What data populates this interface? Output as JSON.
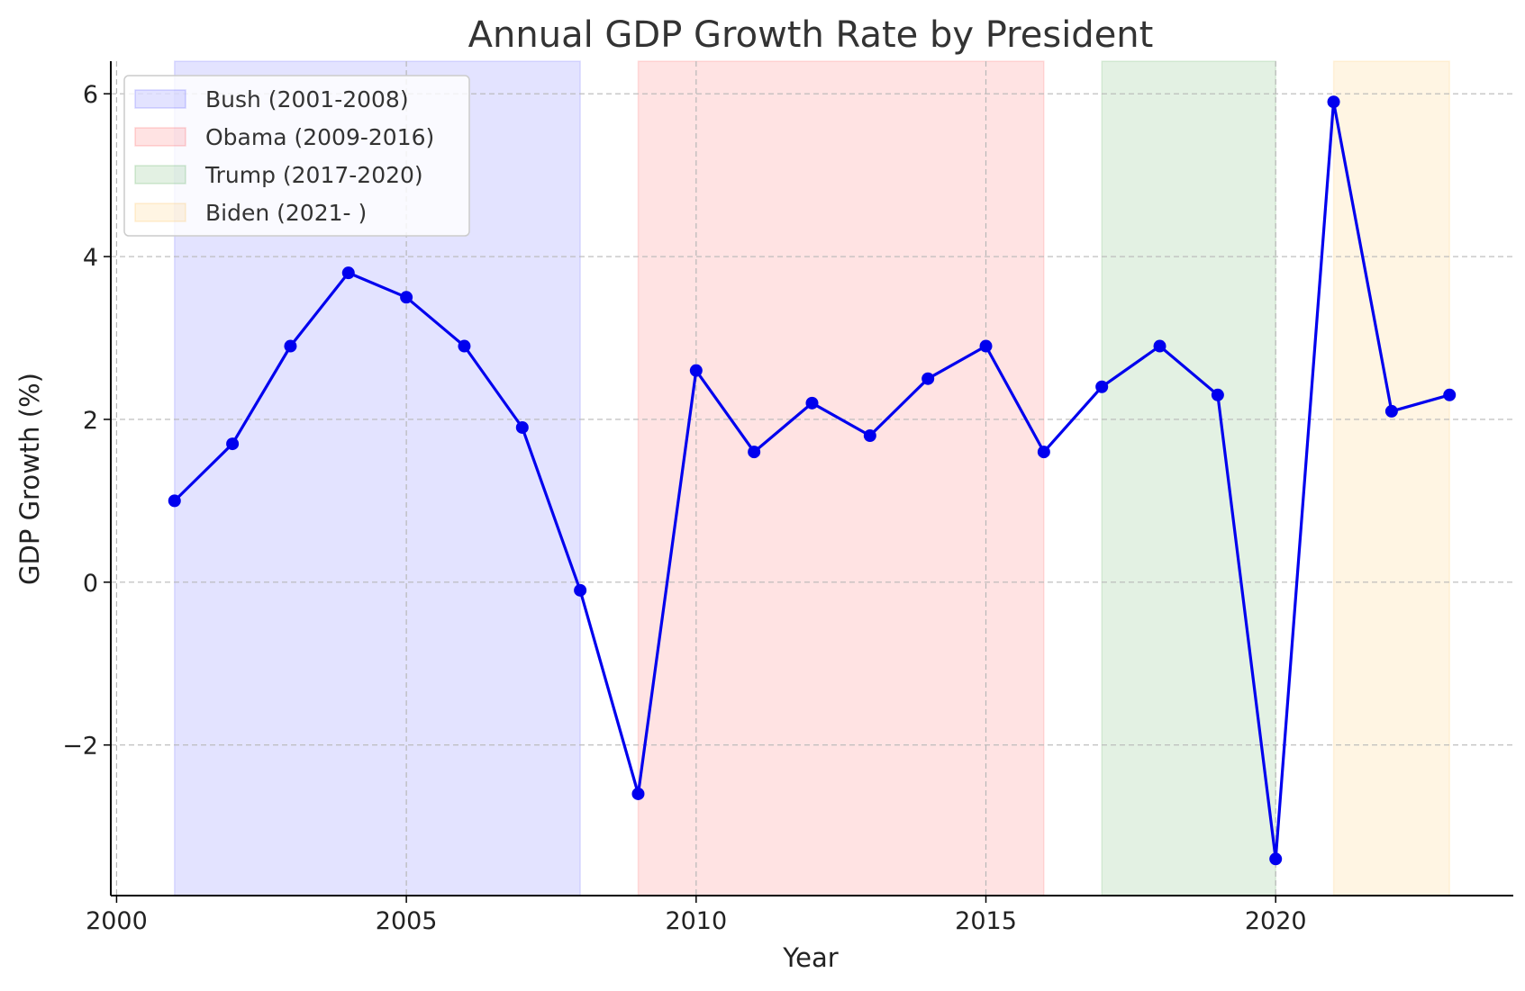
{
  "chart_data": {
    "type": "line",
    "title": "Annual GDP Growth Rate by President",
    "xlabel": "Year",
    "ylabel": "GDP Growth (%)",
    "xlim": [
      1999.9,
      2024.1
    ],
    "ylim": [
      -3.85,
      6.4
    ],
    "grid": true,
    "legend_position": "top-left",
    "xticks": [
      2000,
      2005,
      2010,
      2015,
      2020
    ],
    "xtick_labels": [
      "2000",
      "2005",
      "2010",
      "2015",
      "2020"
    ],
    "yticks": [
      -2,
      0,
      2,
      4,
      6
    ],
    "ytick_labels": [
      "−2",
      "0",
      "2",
      "4",
      "6"
    ],
    "series": [
      {
        "name": "GDP Growth",
        "color": "#0000ee",
        "x": [
          2001,
          2002,
          2003,
          2004,
          2005,
          2006,
          2007,
          2008,
          2009,
          2010,
          2011,
          2012,
          2013,
          2014,
          2015,
          2016,
          2017,
          2018,
          2019,
          2020,
          2021,
          2022,
          2023
        ],
        "values": [
          1.0,
          1.7,
          2.9,
          3.8,
          3.5,
          2.9,
          1.9,
          -0.1,
          -2.6,
          2.6,
          1.6,
          2.2,
          1.8,
          2.5,
          2.9,
          1.6,
          2.4,
          2.9,
          2.3,
          -3.4,
          5.9,
          2.1,
          2.3
        ]
      }
    ],
    "spans": [
      {
        "label": "Bush (2001-2008)",
        "start": 2001,
        "end": 2008,
        "color": "#0000ff",
        "alpha": 0.11
      },
      {
        "label": "Obama (2009-2016)",
        "start": 2009,
        "end": 2016,
        "color": "#ff0000",
        "alpha": 0.11
      },
      {
        "label": "Trump (2017-2020)",
        "start": 2017,
        "end": 2020,
        "color": "#008000",
        "alpha": 0.11
      },
      {
        "label": "Biden (2021- )",
        "start": 2021,
        "end": 2023,
        "color": "#ffa500",
        "alpha": 0.11
      }
    ]
  }
}
